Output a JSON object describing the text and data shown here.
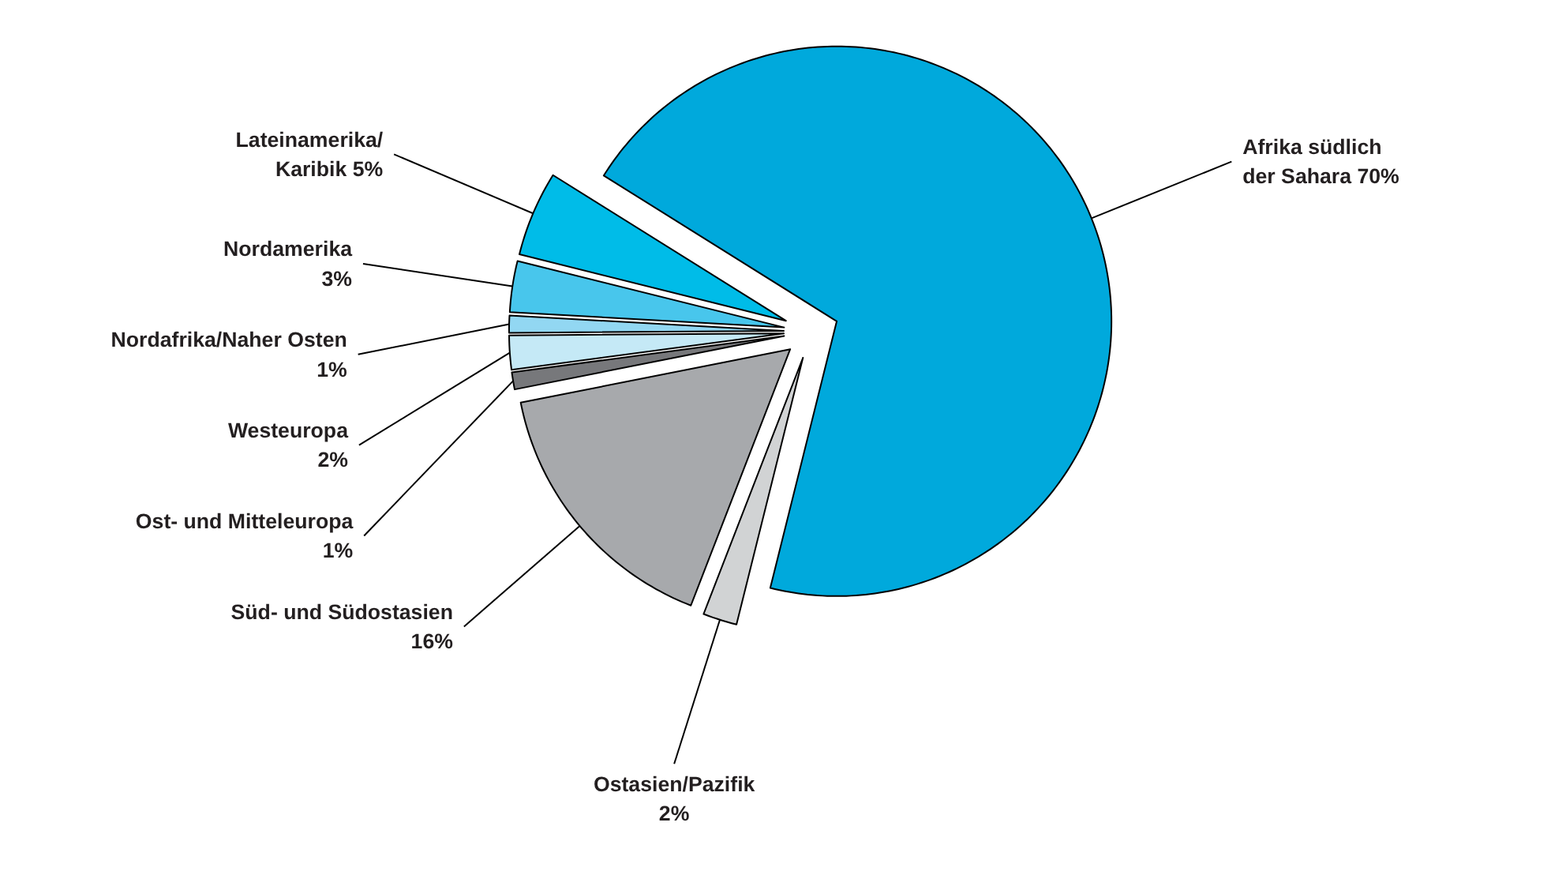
{
  "chart_data": {
    "type": "pie",
    "categories": [
      "Afrika südlich\nder Sahara",
      "Ostasien/Pazifik",
      "Süd- und Südostasien",
      "Ost- und Mitteleuropa",
      "Westeuropa",
      "Nordafrika/Naher Osten",
      "Nordamerika",
      "Lateinamerika/\nKaribik"
    ],
    "values": [
      70,
      2,
      16,
      1,
      2,
      1,
      3,
      5
    ],
    "value_labels": [
      "70%",
      "2%",
      "16%",
      "1%",
      "2%",
      "1%",
      "3%",
      "5%"
    ],
    "colors": [
      "#00a9dc",
      "#d1d3d4",
      "#a7a9ac",
      "#77787b",
      "#c5e9f6",
      "#92d7f2",
      "#48c6ec",
      "#00bce8"
    ]
  }
}
